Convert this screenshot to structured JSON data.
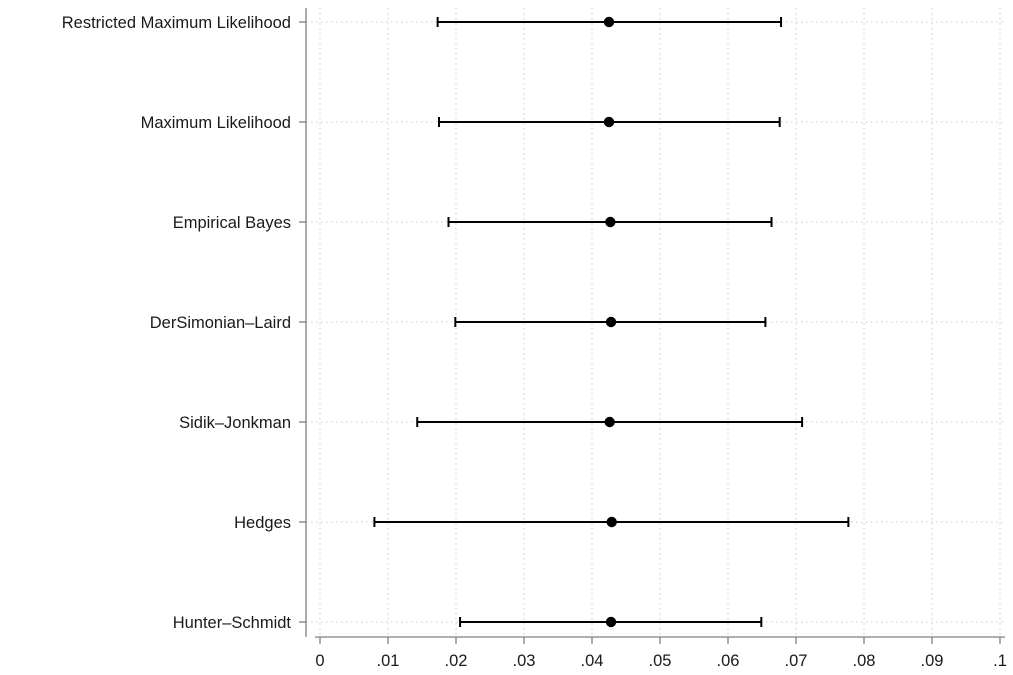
{
  "chart_data": {
    "type": "scatter",
    "subtype": "forest-plot-horizontal-ci",
    "title": "",
    "xlabel": "",
    "ylabel": "",
    "xlim": [
      0,
      0.1
    ],
    "x_ticks": [
      0,
      0.01,
      0.02,
      0.03,
      0.04,
      0.05,
      0.06,
      0.07,
      0.08,
      0.09,
      0.1
    ],
    "x_tick_labels": [
      "0",
      ".01",
      ".02",
      ".03",
      ".04",
      ".05",
      ".06",
      ".07",
      ".08",
      ".09",
      ".1"
    ],
    "grid": true,
    "grid_style": "dotted",
    "legend": "none",
    "colors": {
      "marks": "#000000",
      "axis": "#7f7f7f",
      "grid": "#c8c8c8",
      "text": "#1a1a1a"
    },
    "categories": [
      "Restricted Maximum Likelihood",
      "Maximum Likelihood",
      "Empirical Bayes",
      "DerSimonian–Laird",
      "Sidik–Jonkman",
      "Hedges",
      "Hunter–Schmidt"
    ],
    "estimates": [
      0.0425,
      0.0425,
      0.0427,
      0.0428,
      0.0426,
      0.0429,
      0.0428
    ],
    "ci_lower": [
      0.0173,
      0.0175,
      0.0189,
      0.0199,
      0.0143,
      0.008,
      0.0206
    ],
    "ci_upper": [
      0.0678,
      0.0676,
      0.0664,
      0.0655,
      0.0709,
      0.0777,
      0.0649
    ]
  }
}
